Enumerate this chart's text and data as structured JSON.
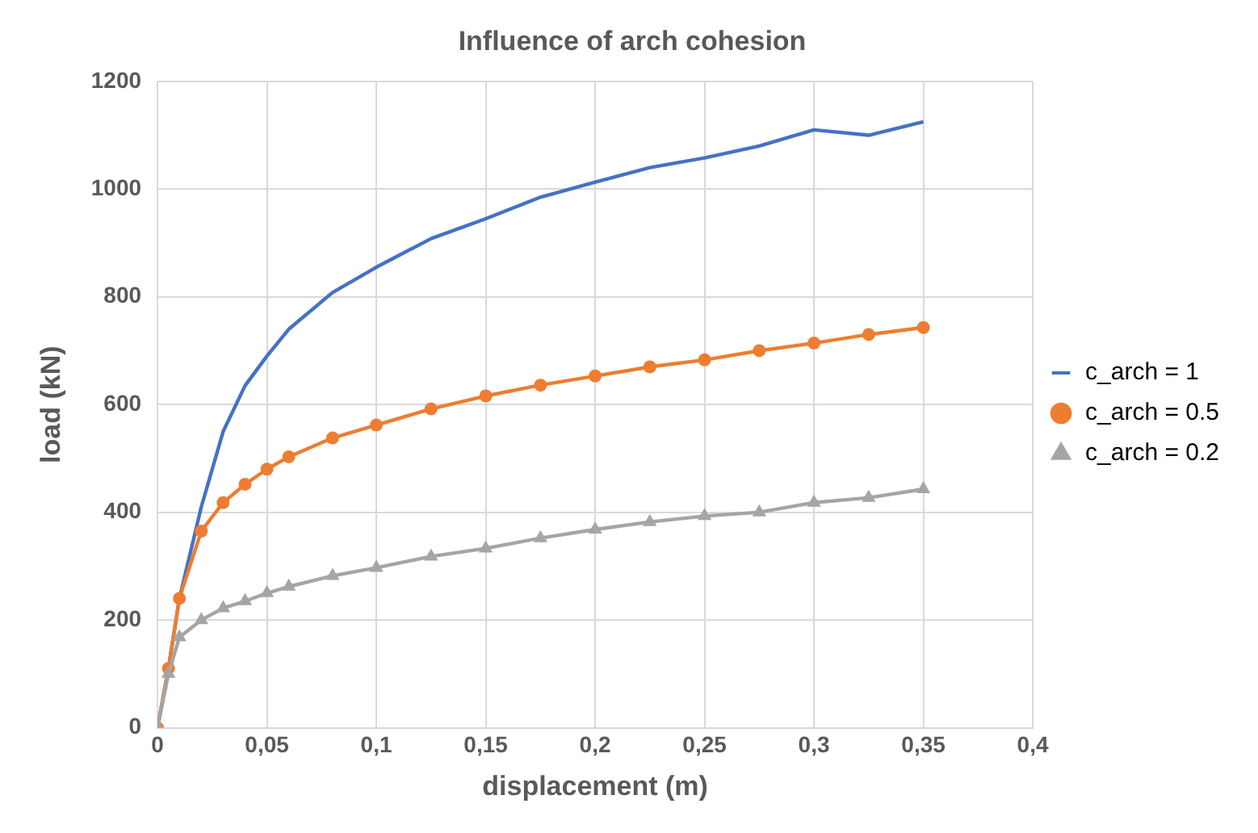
{
  "chart_data": {
    "type": "line",
    "title": "Influence of arch cohesion",
    "xlabel": "displacement (m)",
    "ylabel": "load (kN)",
    "x": [
      0,
      0.005,
      0.01,
      0.02,
      0.03,
      0.04,
      0.05,
      0.06,
      0.08,
      0.1,
      0.125,
      0.15,
      0.175,
      0.2,
      0.225,
      0.25,
      0.275,
      0.3,
      0.325,
      0.35
    ],
    "series": [
      {
        "name": "c_arch = 1",
        "color": "#4472c4",
        "marker": "none",
        "values": [
          0,
          110,
          240,
          410,
          550,
          635,
          690,
          740,
          808,
          855,
          908,
          945,
          985,
          1013,
          1040,
          1058,
          1080,
          1110,
          1100,
          1125
        ]
      },
      {
        "name": "c_arch = 0.5",
        "color": "#ed7d31",
        "marker": "circle",
        "values": [
          0,
          110,
          240,
          365,
          418,
          452,
          480,
          503,
          538,
          562,
          592,
          616,
          636,
          653,
          670,
          683,
          700,
          714,
          730,
          743
        ]
      },
      {
        "name": "c_arch = 0.2",
        "color": "#a5a5a5",
        "marker": "triangle",
        "values": [
          0,
          100,
          168,
          200,
          222,
          235,
          250,
          262,
          282,
          297,
          318,
          333,
          352,
          368,
          382,
          393,
          400,
          418,
          427,
          443
        ]
      }
    ],
    "xlim": [
      0,
      0.4
    ],
    "xticks": [
      {
        "value": 0,
        "label": "0"
      },
      {
        "value": 0.05,
        "label": "0,05"
      },
      {
        "value": 0.1,
        "label": "0,1"
      },
      {
        "value": 0.15,
        "label": "0,15"
      },
      {
        "value": 0.2,
        "label": "0,2"
      },
      {
        "value": 0.25,
        "label": "0,25"
      },
      {
        "value": 0.3,
        "label": "0,3"
      },
      {
        "value": 0.35,
        "label": "0,35"
      },
      {
        "value": 0.4,
        "label": "0,4"
      }
    ],
    "ylim": [
      0,
      1200
    ],
    "yticks": [
      0,
      200,
      400,
      600,
      800,
      1000,
      1200
    ],
    "grid": true,
    "legend": "right"
  }
}
